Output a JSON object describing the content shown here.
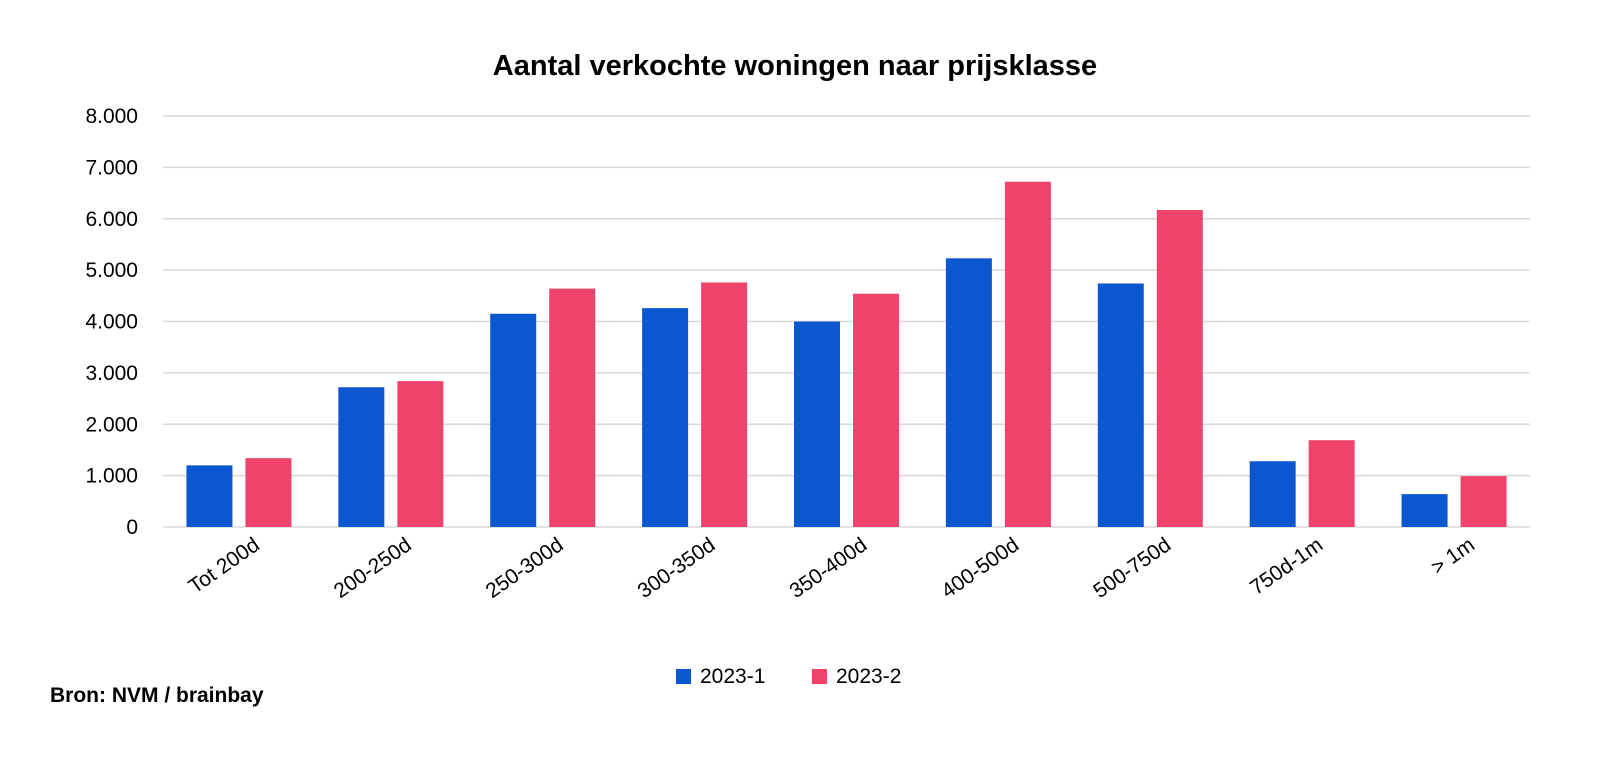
{
  "chart_data": {
    "type": "bar",
    "title": "Aantal verkochte woningen naar prijsklasse",
    "xlabel": "",
    "ylabel": "",
    "ylim": [
      0,
      8000
    ],
    "yticks": [
      "0",
      "1.000",
      "2.000",
      "3.000",
      "4.000",
      "5.000",
      "6.000",
      "7.000",
      "8.000"
    ],
    "categories": [
      "Tot 200d",
      "200-250d",
      "250-300d",
      "300-350d",
      "350-400d",
      "400-500d",
      "500-750d",
      "750d-1m",
      "> 1m"
    ],
    "series": [
      {
        "name": "2023-1",
        "color": "#0b57d0",
        "values": [
          1200,
          2720,
          4150,
          4260,
          4000,
          5230,
          4740,
          1280,
          640
        ]
      },
      {
        "name": "2023-2",
        "color": "#f0436c",
        "values": [
          1340,
          2840,
          4640,
          4760,
          4540,
          6720,
          6170,
          1690,
          990
        ]
      }
    ],
    "grid": true,
    "legend": "bottom"
  },
  "source": "Bron: NVM / brainbay"
}
